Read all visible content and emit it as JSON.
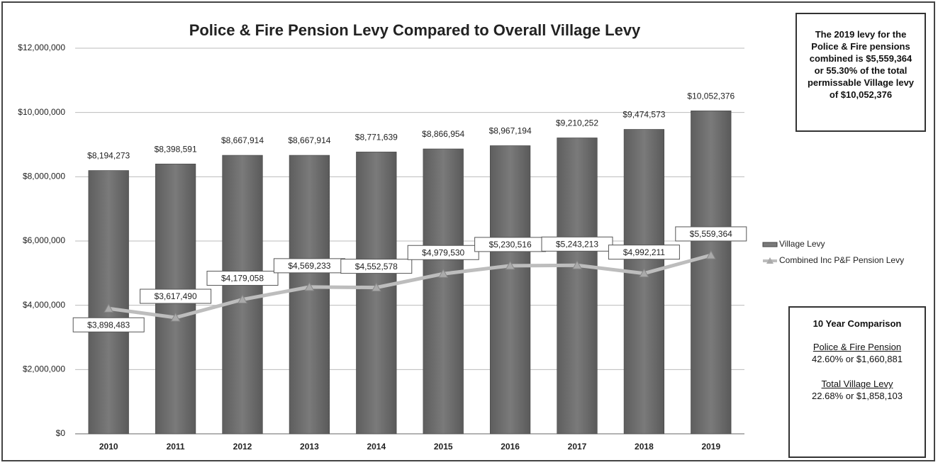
{
  "chart_data": {
    "type": "bar_line",
    "title": "Police & Fire Pension Levy Compared to Overall Village Levy",
    "categories": [
      "2010",
      "2011",
      "2012",
      "2013",
      "2014",
      "2015",
      "2016",
      "2017",
      "2018",
      "2019"
    ],
    "series": [
      {
        "name": "Village Levy",
        "type": "bar",
        "color": "#7a7a7a",
        "values": [
          8194273,
          8398591,
          8667914,
          8667914,
          8771639,
          8866954,
          8967194,
          9210252,
          9474573,
          10052376
        ],
        "value_labels": [
          "$8,194,273",
          "$8,398,591",
          "$8,667,914",
          "$8,667,914",
          "$8,771,639",
          "$8,866,954",
          "$8,967,194",
          "$9,210,252",
          "$9,474,573",
          "$10,052,376"
        ]
      },
      {
        "name": "Combined Inc P&F Pension Levy",
        "type": "line",
        "color": "#bdbdbd",
        "values": [
          3898483,
          3617490,
          4179058,
          4569233,
          4552578,
          4979530,
          5230516,
          5243213,
          4992211,
          5559364
        ],
        "value_labels": [
          "$3,898,483",
          "$3,617,490",
          "$4,179,058",
          "$4,569,233",
          "$4,552,578",
          "$4,979,530",
          "$5,230,516",
          "$5,243,213",
          "$4,992,211",
          "$5,559,364"
        ]
      }
    ],
    "ylim": [
      0,
      12000000
    ],
    "yticks": [
      {
        "value": 0,
        "label": "$0"
      },
      {
        "value": 2000000,
        "label": "$2,000,000"
      },
      {
        "value": 4000000,
        "label": "$4,000,000"
      },
      {
        "value": 6000000,
        "label": "$6,000,000"
      },
      {
        "value": 8000000,
        "label": "$8,000,000"
      },
      {
        "value": 10000000,
        "label": "$10,000,000"
      },
      {
        "value": 12000000,
        "label": "$12,000,000"
      }
    ],
    "grid": true,
    "legend": "right",
    "annotations": {
      "summary": "The 2019 levy for the Police & Fire pensions combined is $5,559,364 or 55.30% of the total permissable Village levy of $10,052,376",
      "comparison_title": "10 Year Comparison",
      "pension_heading": "Police & Fire Pension",
      "pension_change": "42.60% or $1,660,881",
      "village_heading": "Total Village Levy",
      "village_change": "22.68% or $1,858,103"
    }
  }
}
